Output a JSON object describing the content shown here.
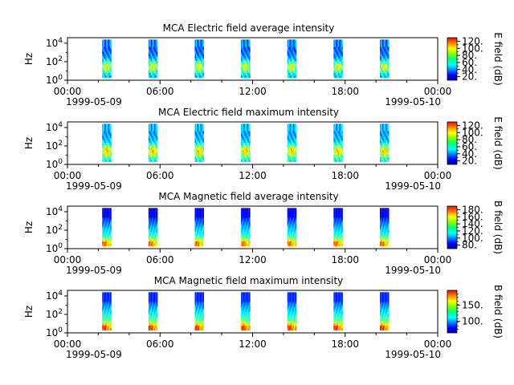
{
  "chart_data": [
    {
      "type": "heatmap",
      "title": "MCA  Electric field average intensity",
      "ylabel": "Hz",
      "yscale": "log",
      "ylim": [
        1,
        40000
      ],
      "yticks": [
        "10^0",
        "10^2",
        "10^4"
      ],
      "xticks": [
        "00:00",
        "06:00",
        "12:00",
        "18:00",
        "00:00"
      ],
      "xdates": [
        "1999-05-09",
        "1999-05-10"
      ],
      "colorbar": {
        "label": "E field (dB)",
        "ticks": [
          "20.",
          "40.",
          "60.",
          "80.",
          "100.",
          "120."
        ],
        "range": [
          10,
          130
        ]
      },
      "passes_hours": [
        3.0,
        6.0,
        9.0,
        12.0,
        15.0,
        18.0,
        21.0
      ]
    },
    {
      "type": "heatmap",
      "title": "MCA  Electric field maximum intensity",
      "ylabel": "Hz",
      "yscale": "log",
      "ylim": [
        1,
        40000
      ],
      "yticks": [
        "10^0",
        "10^2",
        "10^4"
      ],
      "xticks": [
        "00:00",
        "06:00",
        "12:00",
        "18:00",
        "00:00"
      ],
      "xdates": [
        "1999-05-09",
        "1999-05-10"
      ],
      "colorbar": {
        "label": "E field (dB)",
        "ticks": [
          "20.",
          "40.",
          "60.",
          "80.",
          "100.",
          "120."
        ],
        "range": [
          10,
          130
        ]
      },
      "passes_hours": [
        3.0,
        6.0,
        9.0,
        12.0,
        15.0,
        18.0,
        21.0
      ]
    },
    {
      "type": "heatmap",
      "title": "MCA  Magnetic field average intensity",
      "ylabel": "Hz",
      "yscale": "log",
      "ylim": [
        1,
        40000
      ],
      "yticks": [
        "10^0",
        "10^2",
        "10^4"
      ],
      "xticks": [
        "00:00",
        "06:00",
        "12:00",
        "18:00",
        "00:00"
      ],
      "xdates": [
        "1999-05-09",
        "1999-05-10"
      ],
      "colorbar": {
        "label": "B field (dB)",
        "ticks": [
          "80.",
          "100.",
          "120.",
          "140.",
          "160.",
          "180."
        ],
        "range": [
          70,
          190
        ]
      },
      "passes_hours": [
        3.0,
        6.0,
        9.0,
        12.0,
        15.0,
        18.0,
        21.0
      ]
    },
    {
      "type": "heatmap",
      "title": "MCA  Magnetic field maximum intensity",
      "ylabel": "Hz",
      "yscale": "log",
      "ylim": [
        1,
        40000
      ],
      "yticks": [
        "10^0",
        "10^2",
        "10^4"
      ],
      "xticks": [
        "00:00",
        "06:00",
        "12:00",
        "18:00",
        "00:00"
      ],
      "xdates": [
        "1999-05-09",
        "1999-05-10"
      ],
      "colorbar": {
        "label": "B field (dB)",
        "ticks": [
          "100.",
          "150."
        ],
        "range": [
          65,
          195
        ]
      },
      "passes_hours": [
        3.0,
        6.0,
        9.0,
        12.0,
        15.0,
        18.0,
        21.0
      ]
    }
  ]
}
